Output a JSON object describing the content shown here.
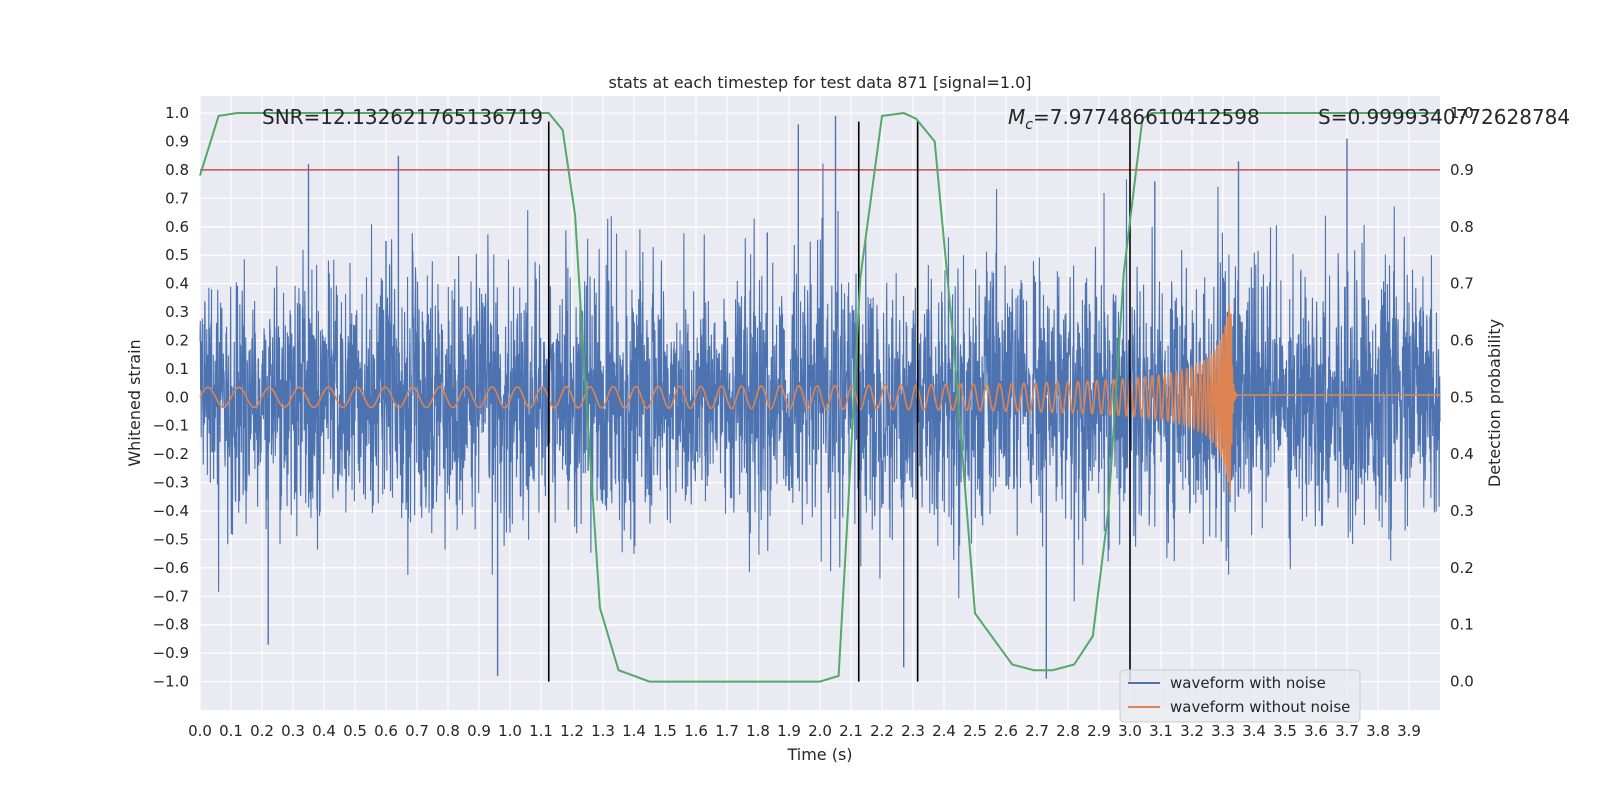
{
  "chart_data": {
    "type": "line",
    "title": "stats at each timestep for test data 871 [signal=1.0]",
    "xlabel": "Time (s)",
    "ylabel_left": "Whitened strain",
    "ylabel_right": "Detection probability",
    "xlim": [
      0.0,
      4.0
    ],
    "ylim_left": [
      -1.1,
      1.06
    ],
    "ylim_right": [
      -0.05,
      1.03
    ],
    "xticks": [
      "0.0",
      "0.1",
      "0.2",
      "0.3",
      "0.4",
      "0.5",
      "0.6",
      "0.7",
      "0.8",
      "0.9",
      "1.0",
      "1.1",
      "1.2",
      "1.3",
      "1.4",
      "1.5",
      "1.6",
      "1.7",
      "1.8",
      "1.9",
      "2.0",
      "2.1",
      "2.2",
      "2.3",
      "2.4",
      "2.5",
      "2.6",
      "2.7",
      "2.8",
      "2.9",
      "3.0",
      "3.1",
      "3.2",
      "3.3",
      "3.4",
      "3.5",
      "3.6",
      "3.7",
      "3.8",
      "3.9"
    ],
    "yticks_left": [
      "1.0",
      "0.9",
      "0.8",
      "0.7",
      "0.6",
      "0.5",
      "0.4",
      "0.3",
      "0.2",
      "0.1",
      "0.0",
      "−0.1",
      "−0.2",
      "−0.3",
      "−0.4",
      "−0.5",
      "−0.6",
      "−0.7",
      "−0.8",
      "−0.9",
      "−1.0"
    ],
    "yticks_right": [
      "1.0",
      "0.9",
      "0.8",
      "0.7",
      "0.6",
      "0.5",
      "0.4",
      "0.3",
      "0.2",
      "0.1",
      "0.0"
    ],
    "annotations": {
      "snr": "SNR=12.132621765136719",
      "mc_symbol": "M",
      "mc_sub": "c",
      "mc_value": "=7.977486610412598",
      "s": "S=0.9999340772628784"
    },
    "legend": {
      "position": "lower-right",
      "entries": [
        "waveform with noise",
        "waveform without noise"
      ]
    },
    "threshold": {
      "axis": "right",
      "value": 0.9,
      "color": "#c44e52"
    },
    "vlines": [
      1.125,
      2.125,
      2.315,
      3.0
    ],
    "vline_range_left": [
      -1.0,
      0.97
    ],
    "series": [
      {
        "name": "waveform with noise",
        "axis": "left",
        "color": "#4c72b0",
        "noise_sd": 0.22,
        "spikes": [
          [
            0.22,
            -0.87
          ],
          [
            0.35,
            0.82
          ],
          [
            0.64,
            0.85
          ],
          [
            0.96,
            -0.98
          ],
          [
            1.93,
            0.96
          ],
          [
            2.05,
            0.99
          ],
          [
            2.27,
            -0.95
          ],
          [
            2.73,
            -0.99
          ],
          [
            3.08,
            0.76
          ],
          [
            3.35,
            0.83
          ],
          [
            3.7,
            0.91
          ],
          [
            1.83,
            0.58
          ],
          [
            0.6,
            0.55
          ]
        ]
      },
      {
        "name": "waveform without noise",
        "axis": "left",
        "color": "#dd8452",
        "chirp_start_amp": 0.03,
        "chirp_peak_amp": 0.37,
        "merger_time": 3.325,
        "ringdown_end": 3.34,
        "post_merger_offset": 0.008
      },
      {
        "name": "detection probability",
        "axis": "right",
        "color": "#55a868",
        "x": [
          0.0,
          0.06,
          0.12,
          0.5,
          1.0,
          1.1,
          1.125,
          1.17,
          1.21,
          1.24,
          1.29,
          1.35,
          1.45,
          1.8,
          2.0,
          2.06,
          2.09,
          2.13,
          2.2,
          2.27,
          2.31,
          2.37,
          2.43,
          2.5,
          2.58,
          2.62,
          2.69,
          2.75,
          2.82,
          2.88,
          2.93,
          2.98,
          3.04,
          3.07,
          3.5,
          4.0
        ],
        "y": [
          0.89,
          0.995,
          1.0,
          1.0,
          1.0,
          1.0,
          1.0,
          0.97,
          0.82,
          0.55,
          0.13,
          0.02,
          0.0,
          0.0,
          0.0,
          0.01,
          0.3,
          0.71,
          0.995,
          1.0,
          0.99,
          0.95,
          0.6,
          0.12,
          0.06,
          0.03,
          0.02,
          0.02,
          0.03,
          0.08,
          0.3,
          0.72,
          0.99,
          1.0,
          1.0,
          1.0
        ]
      }
    ]
  }
}
